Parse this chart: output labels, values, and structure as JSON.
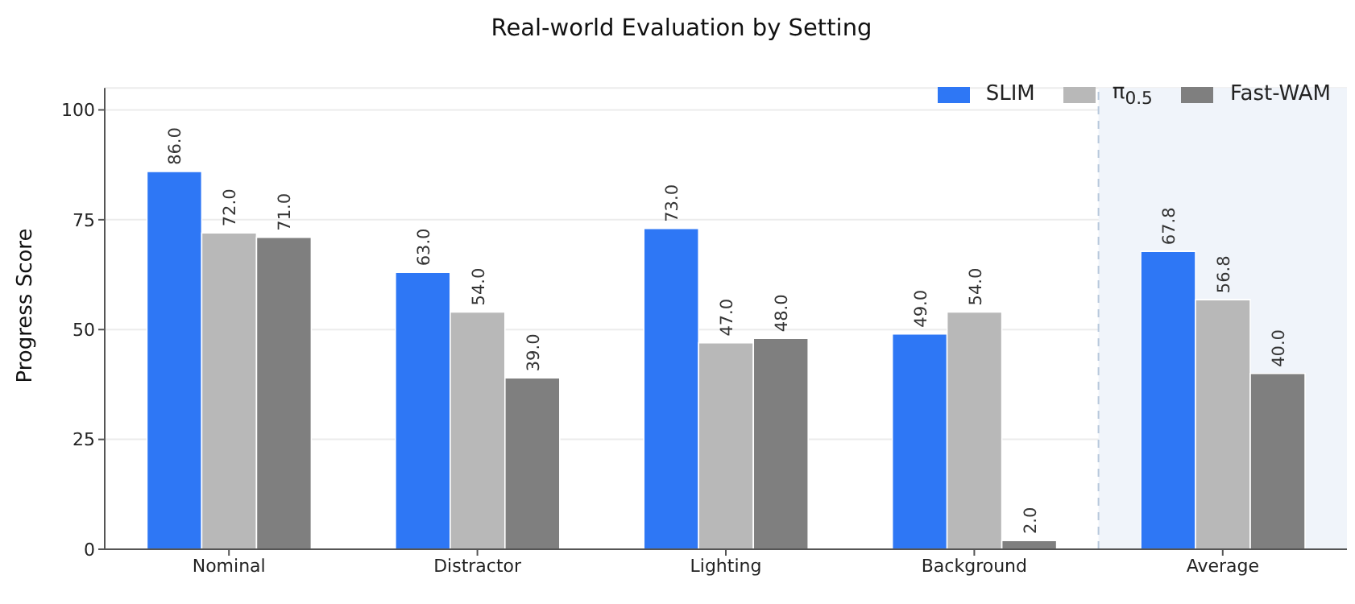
{
  "chart_data": {
    "type": "bar",
    "title": "Real-world Evaluation by Setting",
    "ylabel": "Progress Score",
    "categories": [
      "Nominal",
      "Distractor",
      "Lighting",
      "Background",
      "Average"
    ],
    "series": [
      {
        "name": "SLIM",
        "color": "#2e77f5",
        "values": [
          86,
          63,
          73,
          49,
          67.8
        ],
        "value_labels": [
          "86.0",
          "63.0",
          "73.0",
          "49.0",
          "67.8"
        ]
      },
      {
        "name": "π$_{0.5}$",
        "color": "#b8b8b8",
        "values": [
          72,
          54,
          47,
          54,
          56.8
        ],
        "value_labels": [
          "72.0",
          "54.0",
          "47.0",
          "54.0",
          "56.8"
        ]
      },
      {
        "name": "Fast-WAM",
        "color": "#7f7f7f",
        "values": [
          71,
          39,
          48,
          2,
          40
        ],
        "value_labels": [
          "71.0",
          "39.0",
          "48.0",
          "2.0",
          "40.0"
        ]
      }
    ],
    "ylim": [
      0,
      105
    ],
    "yticks": [
      0,
      25,
      50,
      75,
      100
    ],
    "grid": "y",
    "legend": "top right",
    "ref_lines": [
      {
        "axis": "x",
        "value": "Average",
        "color": "#b8c8dc",
        "line_style": "dashed"
      }
    ],
    "bands": [
      {
        "axis": "x",
        "from": "Average",
        "to": "Average",
        "color": "#f0f4fa"
      }
    ]
  }
}
